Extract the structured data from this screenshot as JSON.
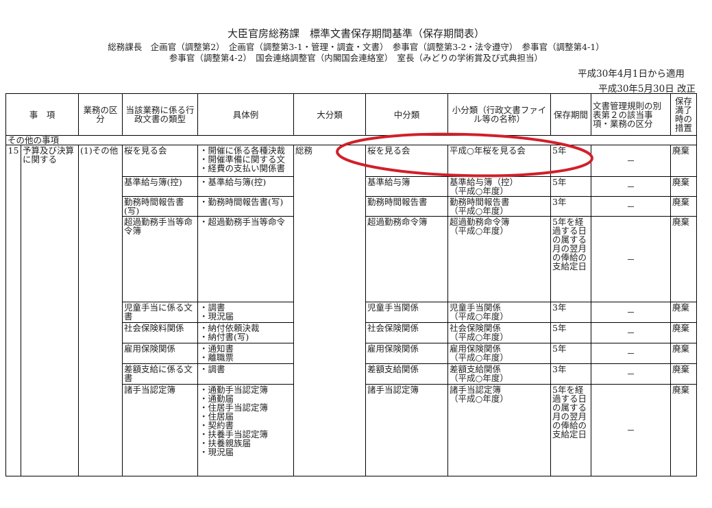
{
  "header": {
    "title": "大臣官房総務課　標準文書保存期間基準（保存期間表）",
    "subtitle1": "総務課長　企画官（調整第2）　企画官（調整第3-1・管理・調査・文書）　参事官（調整第3-2・法令遵守）　参事官（調整第4-1）",
    "subtitle2": "参事官（調整第4-2）　国会連絡調整官（内閣国会連絡室）　室長（みどりの学術賞及び式典担当）",
    "applied": "平成30年4月1日から適用",
    "revised": "平成30年5月30日 改正"
  },
  "columns": [
    "事　項",
    "業務の区分",
    "当該業務に係る行政文書の類型",
    "具体例",
    "大分類",
    "中分類",
    "小分類（行政文書ファイル等の名称）",
    "保存期間",
    "文書管理規則の別表第２の該当事項・業務の区分",
    "保存満了時の措置"
  ],
  "section": "その他の事項",
  "item": {
    "number": "15",
    "name": "予算及び決算に関する",
    "division": "(1)その他",
    "major": "総務"
  },
  "rows": [
    {
      "type": "桜を見る会",
      "examples": [
        "・開催に係る各種決裁",
        "・開催準備に関する文",
        "・経費の支払い関係書"
      ],
      "middle": "桜を見る会",
      "small": [
        "平成○年桜を見る会"
      ],
      "period": "5年",
      "rule": "－",
      "action": "廃棄"
    },
    {
      "type": "基準給与簿(控)",
      "examples": [
        "・基準給与簿(控)"
      ],
      "middle": "基準給与簿",
      "small": [
        "基準給与簿（控）",
        "（平成○年度）"
      ],
      "period": "5年",
      "rule": "－",
      "action": "廃棄"
    },
    {
      "type": "勤務時間報告書(写)",
      "examples": [
        "・勤務時間報告書(写)"
      ],
      "middle": "勤務時間報告書",
      "small": [
        "勤務時間報告書",
        "（平成○年度）"
      ],
      "period": "3年",
      "rule": "－",
      "action": "廃棄"
    },
    {
      "type": "超過勤務手当等命令簿",
      "examples": [
        "・超過勤務手当等命令"
      ],
      "middle": "超過勤務命令簿",
      "small": [
        "超過勤務命令簿",
        "（平成○年度）"
      ],
      "period": "5年を経過する日の属する月の翌月の俸給の支給定日",
      "rule": "－",
      "action": "廃棄"
    },
    {
      "type": "児童手当に係る文書",
      "examples": [
        "・調書",
        "・現況届"
      ],
      "middle": "児童手当関係",
      "small": [
        "児童手当関係",
        "（平成○年度）"
      ],
      "period": "3年",
      "rule": "－",
      "action": "廃棄"
    },
    {
      "type": "社会保険料関係",
      "examples": [
        "・納付依頼決裁",
        "・納付書(写)"
      ],
      "middle": "社会保険関係",
      "small": [
        "社会保険関係",
        "（平成○年度）"
      ],
      "period": "5年",
      "rule": "－",
      "action": "廃棄"
    },
    {
      "type": "雇用保険関係",
      "examples": [
        "・通知書",
        "・離職票"
      ],
      "middle": "雇用保険関係",
      "small": [
        "雇用保険関係",
        "（平成○年度）"
      ],
      "period": "5年",
      "rule": "－",
      "action": "廃棄"
    },
    {
      "type": "差額支給に係る文書",
      "examples": [
        "・調書"
      ],
      "middle": "差額支給関係",
      "small": [
        "差額支給関係",
        "（平成○年度）"
      ],
      "period": "3年",
      "rule": "－",
      "action": "廃棄"
    },
    {
      "type": "諸手当認定簿",
      "examples": [
        "・通勤手当認定簿",
        "・通勤届",
        "・住居手当認定簿",
        "・住居届",
        "・契約書",
        "・扶養手当認定簿",
        "・扶養親族届",
        "・現況届"
      ],
      "middle": "諸手当認定簿",
      "small": [
        "諸手当認定簿",
        "（平成○年度）"
      ],
      "period": "5年を経過する日の属する月の翌月の俸給の支給定日",
      "rule": "－",
      "action": "廃棄"
    }
  ],
  "annotation": {
    "shape": "ellipse",
    "color": "#d0202a",
    "highlights": "桜を見る会 row"
  }
}
